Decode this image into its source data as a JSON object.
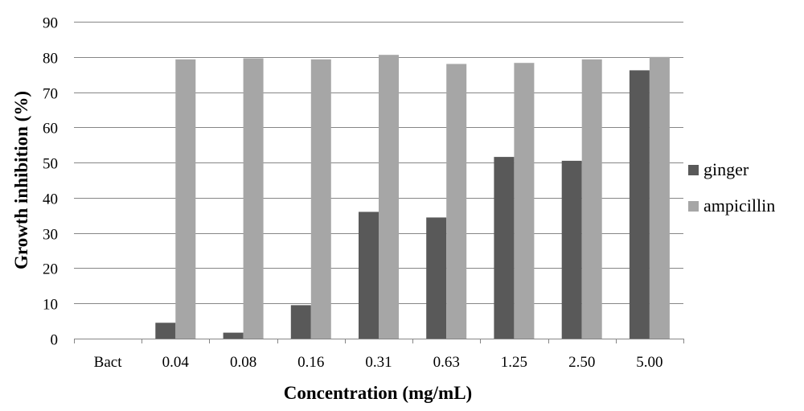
{
  "chart_data": {
    "type": "bar",
    "title": "",
    "xlabel": "Concentration (mg/mL)",
    "ylabel": "Growth inhibition (%)",
    "ylim": [
      0,
      90
    ],
    "yticks": [
      "0",
      "10",
      "20",
      "30",
      "40",
      "50",
      "60",
      "70",
      "80",
      "90"
    ],
    "categories": [
      "Bact",
      "0.04",
      "0.08",
      "0.16",
      "0.31",
      "0.63",
      "1.25",
      "2.50",
      "5.00"
    ],
    "grid": true,
    "legend_position": "right",
    "series": [
      {
        "name": "ginger",
        "color": "#595959",
        "values": [
          0,
          4.5,
          1.7,
          9.5,
          36,
          34.4,
          51.6,
          50.5,
          76.2
        ]
      },
      {
        "name": "ampicillin",
        "color": "#a6a6a6",
        "values": [
          0,
          79.3,
          79.6,
          79.3,
          80.6,
          78,
          78.3,
          79.3,
          80
        ]
      }
    ]
  }
}
